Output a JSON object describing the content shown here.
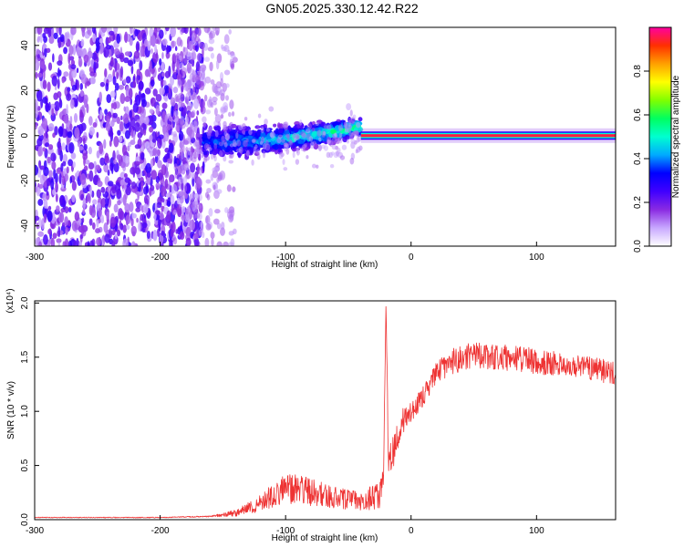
{
  "chart_data": [
    {
      "type": "heatmap",
      "title": "GN05.2025.330.12.42.R22",
      "xlabel": "Height of straight line (km)",
      "ylabel": "Frequency (Hz)",
      "xlim": [
        -300,
        163
      ],
      "ylim": [
        -49,
        48
      ],
      "xticks": [
        -300,
        -200,
        -100,
        0,
        100
      ],
      "yticks": [
        -40,
        -20,
        0,
        20,
        40
      ],
      "colorbar": {
        "label": "Normalized spectral amplitude",
        "range": [
          0,
          1
        ],
        "ticks": [
          0.0,
          0.2,
          0.4,
          0.6,
          0.8
        ],
        "colors": [
          "#ffffff",
          "#c8a8ff",
          "#8a2be2",
          "#4000ff",
          "#0000ff",
          "#00aaff",
          "#00ffd0",
          "#00ff60",
          "#80ff00",
          "#ffff00",
          "#ffa000",
          "#ff3000",
          "#ff00a0"
        ]
      },
      "regions": [
        {
          "name": "noise-field",
          "x_range": [
            -300,
            -165
          ],
          "freq_range": [
            -49,
            48
          ],
          "amplitude": 0.25
        },
        {
          "name": "fading-noise",
          "x_range": [
            -190,
            -140
          ],
          "freq_range": [
            -49,
            48
          ],
          "amplitude": 0.08
        },
        {
          "name": "broad-signal",
          "x_range": [
            -165,
            -40
          ],
          "freq_center": [
            -3,
            4
          ],
          "freq_spread": [
            9,
            5
          ],
          "amplitude": 0.3
        },
        {
          "name": "signal-line",
          "x_range": [
            -40,
            163
          ],
          "freq_center": 0,
          "amplitude": 0.95
        }
      ]
    },
    {
      "type": "line",
      "xlabel": "Height of straight line (km)",
      "ylabel": "SNR (10 * v/v)",
      "multiplier": "(x10⁴)",
      "xlim": [
        -300,
        163
      ],
      "ylim": [
        0,
        2.02
      ],
      "xticks": [
        -300,
        -200,
        -100,
        0,
        100
      ],
      "yticks": [
        0.0,
        0.5,
        1.0,
        1.5,
        2.0
      ],
      "series": [
        {
          "name": "SNR",
          "color": "#ee3333",
          "x": [
            -300,
            -250,
            -200,
            -160,
            -140,
            -120,
            -100,
            -80,
            -60,
            -40,
            -30,
            -25,
            -22,
            -20,
            -18,
            -15,
            -10,
            -5,
            0,
            10,
            20,
            30,
            50,
            70,
            90,
            110,
            130,
            150,
            163
          ],
          "values": [
            0.02,
            0.02,
            0.02,
            0.03,
            0.06,
            0.15,
            0.3,
            0.25,
            0.2,
            0.18,
            0.2,
            0.22,
            0.4,
            2.0,
            0.5,
            0.6,
            0.8,
            0.95,
            1.0,
            1.15,
            1.35,
            1.45,
            1.52,
            1.5,
            1.48,
            1.45,
            1.42,
            1.38,
            1.35
          ],
          "noise_amplitude": [
            0.004,
            0.004,
            0.004,
            0.006,
            0.03,
            0.08,
            0.15,
            0.13,
            0.1,
            0.1,
            0.12,
            0.12,
            0.1,
            0.0,
            0.15,
            0.15,
            0.15,
            0.12,
            0.1,
            0.1,
            0.1,
            0.12,
            0.12,
            0.12,
            0.12,
            0.12,
            0.11,
            0.11,
            0.1
          ]
        }
      ]
    }
  ]
}
